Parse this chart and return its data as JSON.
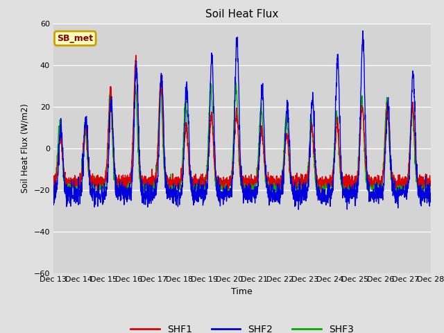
{
  "title": "Soil Heat Flux",
  "ylabel": "Soil Heat Flux (W/m2)",
  "xlabel": "Time",
  "ylim": [
    -60,
    60
  ],
  "yticks": [
    -60,
    -40,
    -20,
    0,
    20,
    40,
    60
  ],
  "line_colors": {
    "SHF1": "#dd0000",
    "SHF2": "#0000dd",
    "SHF3": "#00aa00"
  },
  "line_width": 1.0,
  "background_color": "#e0e0e0",
  "plot_bg_color": "#d4d4d4",
  "legend_label": "SB_met",
  "legend_box_color": "#c8a000",
  "legend_box_bg": "#ffffc0",
  "n_days": 15,
  "start_day": 13,
  "points_per_day": 144
}
